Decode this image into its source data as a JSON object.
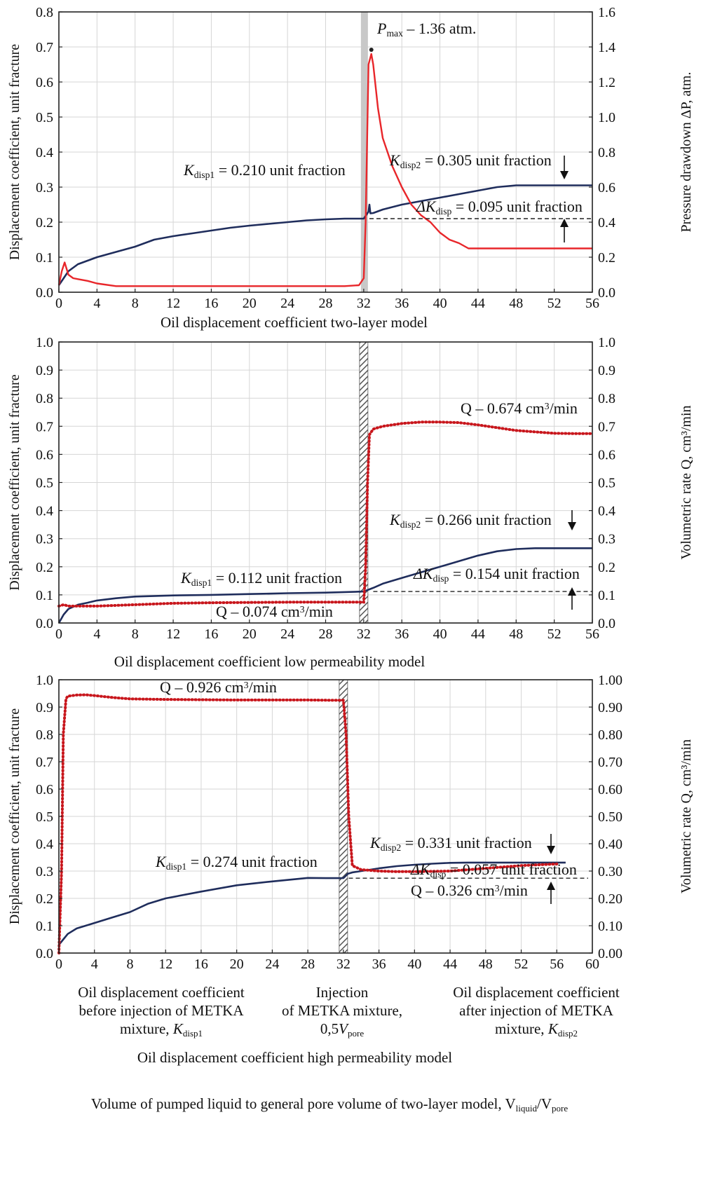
{
  "xlabel": "Volume of pumped liquid to general pore volume of two-layer model, V",
  "xlabel_sub1": "liquid",
  "xlabel_mid": "/V",
  "xlabel_sub2": "pore",
  "colors": {
    "k_line": "#1f2d5c",
    "red_line": "#e8262a",
    "dotted": "#c8161c",
    "band": "#c8c8c8"
  },
  "chart_data": [
    {
      "type": "line",
      "title": "Oil displacement coefficient two-layer model",
      "ylabel": "Displacement coefficient, unit fracture",
      "ylabel2": "Pressure drawdown ΔP, atm.",
      "xlim": [
        0,
        56
      ],
      "ylim": [
        0,
        0.8
      ],
      "y2lim": [
        0,
        1.6
      ],
      "xticks": [
        "0",
        "4",
        "8",
        "12",
        "16",
        "20",
        "24",
        "28",
        "32",
        "36",
        "40",
        "44",
        "48",
        "52",
        "56"
      ],
      "yticks": [
        "0.0",
        "0.1",
        "0.2",
        "0.3",
        "0.4",
        "0.5",
        "0.6",
        "0.7",
        "0.8"
      ],
      "y2ticks": [
        "0.0",
        "0.2",
        "0.4",
        "0.6",
        "0.8",
        "1.0",
        "1.2",
        "1.4",
        "1.6"
      ],
      "grid": true,
      "series": [
        {
          "axis": "left",
          "style": "solid-navy",
          "x": [
            0,
            0.5,
            1,
            1.5,
            2,
            3,
            4,
            6,
            8,
            10,
            12,
            14,
            16,
            18,
            20,
            22,
            24,
            26,
            28,
            30,
            32,
            32.5,
            32.6,
            32.7,
            33,
            34,
            36,
            38,
            40,
            42,
            44,
            46,
            48,
            50,
            52,
            54,
            56
          ],
          "y": [
            0.02,
            0.04,
            0.06,
            0.07,
            0.08,
            0.09,
            0.1,
            0.115,
            0.13,
            0.15,
            0.16,
            0.168,
            0.176,
            0.184,
            0.19,
            0.195,
            0.2,
            0.205,
            0.208,
            0.21,
            0.21,
            0.23,
            0.25,
            0.225,
            0.226,
            0.236,
            0.25,
            0.26,
            0.27,
            0.28,
            0.29,
            0.3,
            0.305,
            0.305,
            0.305,
            0.305,
            0.305
          ]
        },
        {
          "axis": "right",
          "style": "solid-red",
          "x": [
            0,
            0.3,
            0.6,
            1,
            1.5,
            2,
            3,
            4,
            6,
            10,
            20,
            30,
            31.5,
            32,
            32.2,
            32.5,
            32.8,
            33,
            33.5,
            34,
            35,
            36,
            37,
            38,
            39,
            40,
            41,
            42,
            43,
            44,
            46,
            48,
            50,
            52,
            54,
            56
          ],
          "y": [
            0.04,
            0.12,
            0.17,
            0.1,
            0.08,
            0.075,
            0.065,
            0.05,
            0.035,
            0.035,
            0.035,
            0.035,
            0.04,
            0.08,
            0.4,
            1.3,
            1.36,
            1.3,
            1.05,
            0.88,
            0.72,
            0.6,
            0.5,
            0.44,
            0.4,
            0.34,
            0.3,
            0.28,
            0.25,
            0.25,
            0.25,
            0.25,
            0.25,
            0.25,
            0.25,
            0.25
          ]
        }
      ],
      "annotations": {
        "pmax_main": "P",
        "pmax_sub": "max",
        "pmax_tail": " – 1.36 atm.",
        "k1_main": "K",
        "k1_sub": "disp1",
        "k1_tail": " = 0.210 unit fraction",
        "k2_main": "K",
        "k2_sub": "disp2",
        "k2_tail": " = 0.305 unit fraction",
        "dk_main": "ΔK",
        "dk_sub": "disp",
        "dk_tail": " = 0.095 unit fraction"
      }
    },
    {
      "type": "line",
      "title": "Oil displacement coefficient low permeability model",
      "ylabel": "Displacement coefficient, unit fracture",
      "ylabel2": "Volumetric rate Q, cm³/min",
      "xlim": [
        0,
        56
      ],
      "ylim": [
        0,
        1.0
      ],
      "y2lim": [
        0,
        1.0
      ],
      "xticks": [
        "0",
        "4",
        "8",
        "12",
        "16",
        "20",
        "24",
        "28",
        "32",
        "36",
        "40",
        "44",
        "48",
        "52",
        "56"
      ],
      "yticks": [
        "0.0",
        "0.1",
        "0.2",
        "0.3",
        "0.4",
        "0.5",
        "0.6",
        "0.7",
        "0.8",
        "0.9",
        "1.0"
      ],
      "y2ticks": [
        "0.0",
        "0.1",
        "0.2",
        "0.3",
        "0.4",
        "0.5",
        "0.6",
        "0.7",
        "0.8",
        "0.9",
        "1.0"
      ],
      "grid": true,
      "series": [
        {
          "axis": "left",
          "style": "solid-navy",
          "x": [
            0,
            0.5,
            1,
            2,
            3,
            4,
            6,
            8,
            12,
            16,
            20,
            24,
            28,
            32,
            33,
            34,
            36,
            38,
            40,
            42,
            44,
            46,
            48,
            50,
            52,
            54,
            56
          ],
          "y": [
            0.0,
            0.03,
            0.05,
            0.065,
            0.072,
            0.08,
            0.088,
            0.094,
            0.098,
            0.1,
            0.103,
            0.106,
            0.108,
            0.112,
            0.125,
            0.14,
            0.16,
            0.18,
            0.2,
            0.22,
            0.24,
            0.255,
            0.263,
            0.266,
            0.266,
            0.266,
            0.266
          ]
        },
        {
          "axis": "right",
          "style": "dotted-red",
          "x": [
            0,
            0.5,
            1,
            4,
            8,
            12,
            16,
            20,
            24,
            28,
            32,
            32.2,
            32.4,
            32.6,
            33,
            34,
            36,
            38,
            40,
            42,
            44,
            46,
            48,
            50,
            52,
            54,
            56
          ],
          "y": [
            0.06,
            0.065,
            0.06,
            0.06,
            0.065,
            0.07,
            0.072,
            0.073,
            0.074,
            0.074,
            0.074,
            0.2,
            0.5,
            0.67,
            0.69,
            0.7,
            0.71,
            0.715,
            0.715,
            0.713,
            0.705,
            0.695,
            0.685,
            0.68,
            0.675,
            0.674,
            0.674
          ]
        }
      ],
      "annotations": {
        "q2_main": "Q – 0.674 cm",
        "q2_sup": "3",
        "q2_tail": "/min",
        "q1_main": "Q – 0.074 cm",
        "q1_sup": "3",
        "q1_tail": "/min",
        "k1_main": "K",
        "k1_sub": "disp1",
        "k1_tail": " = 0.112 unit fraction",
        "k2_main": "K",
        "k2_sub": "disp2",
        "k2_tail": " = 0.266 unit fraction",
        "dk_main": "ΔK",
        "dk_sub": "disp",
        "dk_tail": " = 0.154 unit fraction"
      }
    },
    {
      "type": "line",
      "title": "Oil displacement coefficient high permeability model",
      "ylabel": "Displacement coefficient, unit fracture",
      "ylabel2": "Volumetric rate Q, cm³/min",
      "xlim": [
        0,
        60
      ],
      "ylim": [
        0,
        1.0
      ],
      "y2lim": [
        0,
        1.0
      ],
      "xticks": [
        "0",
        "4",
        "8",
        "12",
        "16",
        "20",
        "24",
        "28",
        "32",
        "36",
        "40",
        "44",
        "48",
        "52",
        "56",
        "60"
      ],
      "yticks": [
        "0.0",
        "0.1",
        "0.2",
        "0.3",
        "0.4",
        "0.5",
        "0.6",
        "0.7",
        "0.8",
        "0.9",
        "1.0"
      ],
      "y2ticks": [
        "0.00",
        "0.10",
        "0.20",
        "0.30",
        "0.40",
        "0.50",
        "0.60",
        "0.70",
        "0.80",
        "0.90",
        "1.00"
      ],
      "grid": true,
      "series": [
        {
          "axis": "left",
          "style": "solid-navy",
          "x": [
            0,
            0.5,
            1,
            2,
            3,
            4,
            6,
            8,
            10,
            12,
            16,
            20,
            24,
            28,
            30,
            32,
            32.5,
            33,
            34,
            36,
            38,
            40,
            42,
            44,
            46,
            48,
            50,
            52,
            54,
            56,
            57
          ],
          "y": [
            0.03,
            0.05,
            0.07,
            0.09,
            0.1,
            0.11,
            0.13,
            0.15,
            0.18,
            0.2,
            0.225,
            0.248,
            0.262,
            0.275,
            0.274,
            0.274,
            0.29,
            0.295,
            0.3,
            0.31,
            0.318,
            0.323,
            0.327,
            0.33,
            0.331,
            0.331,
            0.331,
            0.331,
            0.331,
            0.331,
            0.331
          ]
        },
        {
          "axis": "right",
          "style": "dotted-red",
          "x": [
            0,
            0.3,
            0.5,
            0.8,
            1,
            2,
            3,
            4,
            6,
            8,
            12,
            16,
            20,
            24,
            28,
            31,
            32,
            32.3,
            32.6,
            33,
            34,
            36,
            38,
            40,
            44,
            48,
            52,
            56
          ],
          "y": [
            0.0,
            0.3,
            0.8,
            0.93,
            0.94,
            0.944,
            0.945,
            0.942,
            0.935,
            0.93,
            0.928,
            0.927,
            0.926,
            0.926,
            0.926,
            0.925,
            0.925,
            0.8,
            0.5,
            0.32,
            0.305,
            0.3,
            0.298,
            0.298,
            0.3,
            0.31,
            0.32,
            0.326
          ]
        }
      ],
      "annotations": {
        "q1_main": "Q – 0.926 cm",
        "q1_sup": "3",
        "q1_tail": "/min",
        "q2_main": "Q – 0.326 cm",
        "q2_sup": "3",
        "q2_tail": "/min",
        "k1_main": "K",
        "k1_sub": "disp1",
        "k1_tail": " = 0.274 unit fraction",
        "k2_main": "K",
        "k2_sub": "disp2",
        "k2_tail": " = 0.331 unit fraction",
        "dk_main": "ΔK",
        "dk_sub": "disp",
        "dk_tail": " = 0.057 unit fraction"
      },
      "captions": {
        "left": [
          "Oil displacement coefficient",
          "before injection of METKA",
          "mixture, K"
        ],
        "left_sub": "disp1",
        "mid": [
          "Injection",
          "of METKA mixture,",
          "0,5V"
        ],
        "mid_sub": "pore",
        "right": [
          "Oil displacement coefficient",
          "after injection of METKA",
          "mixture, K"
        ],
        "right_sub": "disp2"
      }
    }
  ]
}
